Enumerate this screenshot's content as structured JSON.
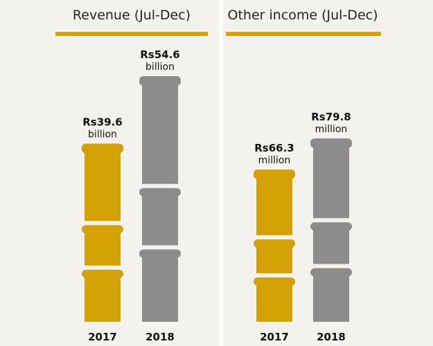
{
  "colors": {
    "gold": "#d4a106",
    "gray": "#8c8c8c",
    "panel_bg": "#f3f2ee",
    "title_bar": "#d4a106"
  },
  "chart_data": [
    {
      "type": "bar",
      "title": "Revenue (Jul-Dec)",
      "categories": [
        "2017",
        "2018"
      ],
      "values": [
        39.6,
        54.6
      ],
      "unit": "billion",
      "value_labels": [
        "Rs39.6",
        "Rs54.6"
      ],
      "bar_colors": [
        "gold",
        "gray"
      ]
    },
    {
      "type": "bar",
      "title": "Other income (Jul-Dec)",
      "categories": [
        "2017",
        "2018"
      ],
      "values": [
        66.3,
        79.8
      ],
      "unit": "million",
      "value_labels": [
        "Rs66.3",
        "Rs79.8"
      ],
      "bar_colors": [
        "gold",
        "gray"
      ]
    }
  ]
}
